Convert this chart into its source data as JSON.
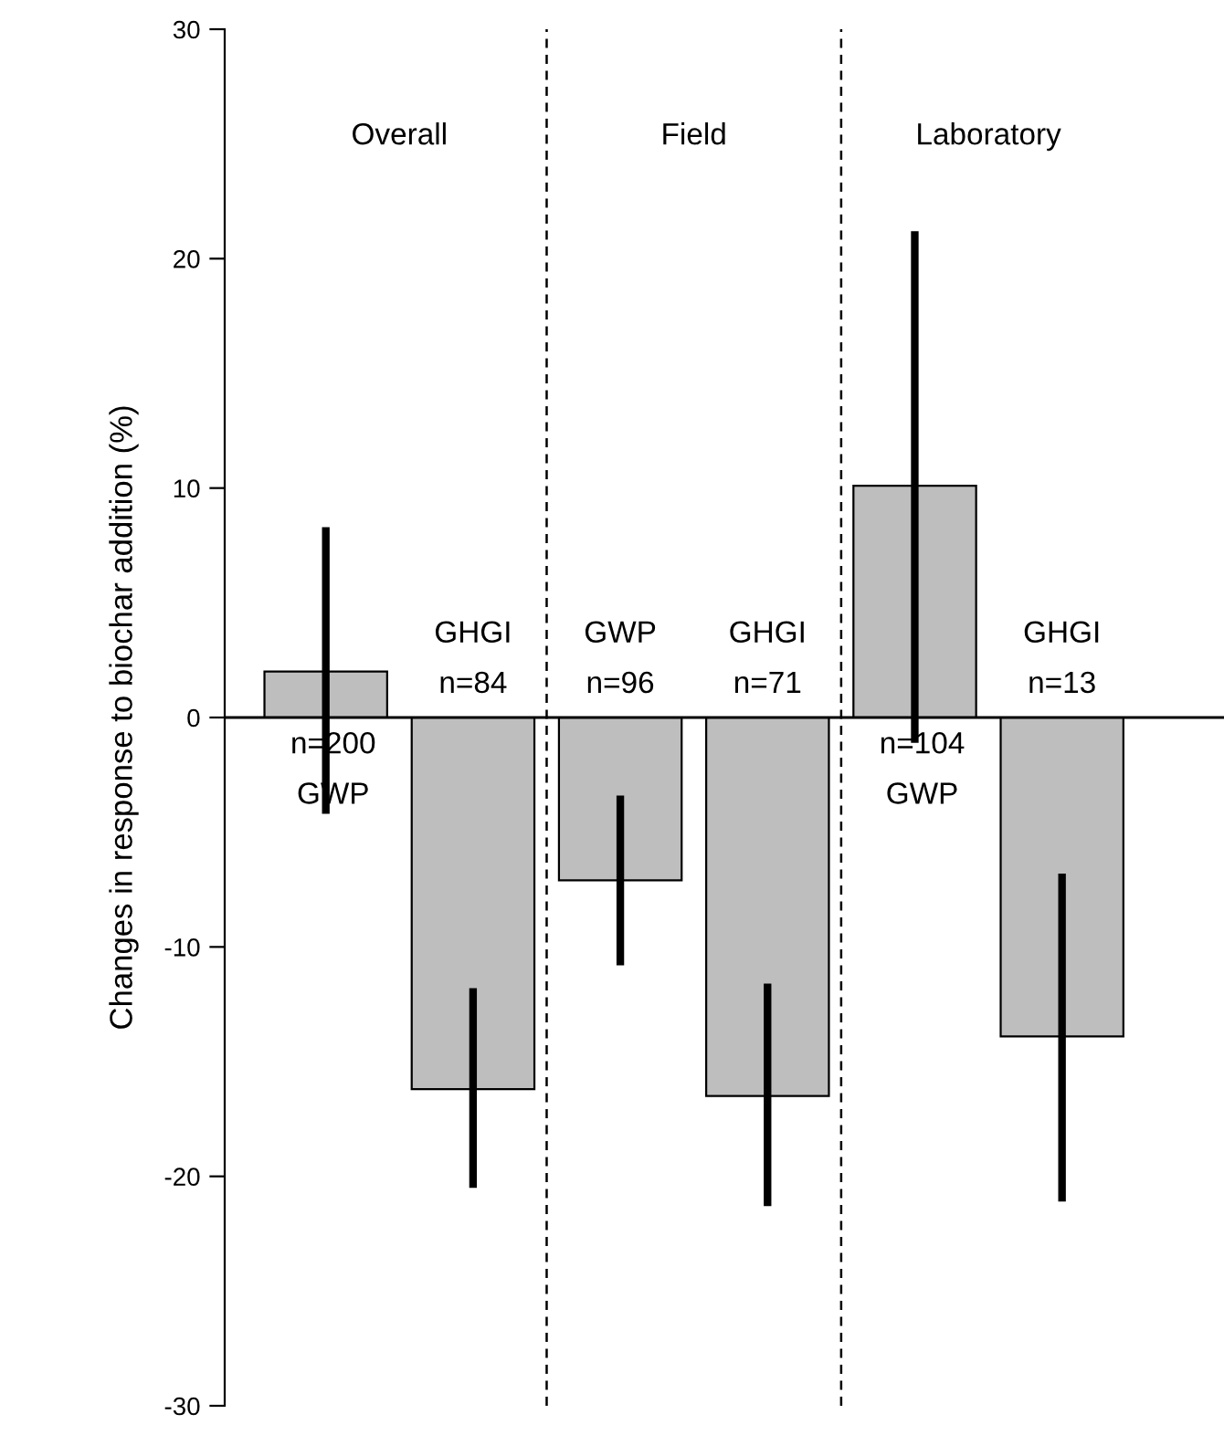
{
  "chart_data": {
    "type": "bar",
    "ylabel": "Changes in response to biochar addition (%)",
    "categories": [
      "n=200\nGWP",
      "GHGI\nn=84",
      "GWP\nn=96",
      "GHGI\nn=71",
      "n=104\nGWP",
      "GHGI\nn=13"
    ],
    "values": [
      2.0,
      -16.2,
      -7.1,
      -16.5,
      10.1,
      -13.9
    ],
    "errors": [
      [
        -4.2,
        8.3
      ],
      [
        -20.5,
        -11.8
      ],
      [
        -10.8,
        -3.4
      ],
      [
        -21.3,
        -11.6
      ],
      [
        -1.1,
        21.2
      ],
      [
        -21.1,
        -6.8
      ]
    ],
    "color": "#bebebe",
    "ylim": [
      -30,
      30
    ],
    "yticks": [
      -30,
      -20,
      -10,
      0,
      10,
      20,
      30
    ],
    "annotations": [
      "Overall",
      "Field",
      "Laboratory"
    ],
    "grid": false,
    "legend": false
  }
}
